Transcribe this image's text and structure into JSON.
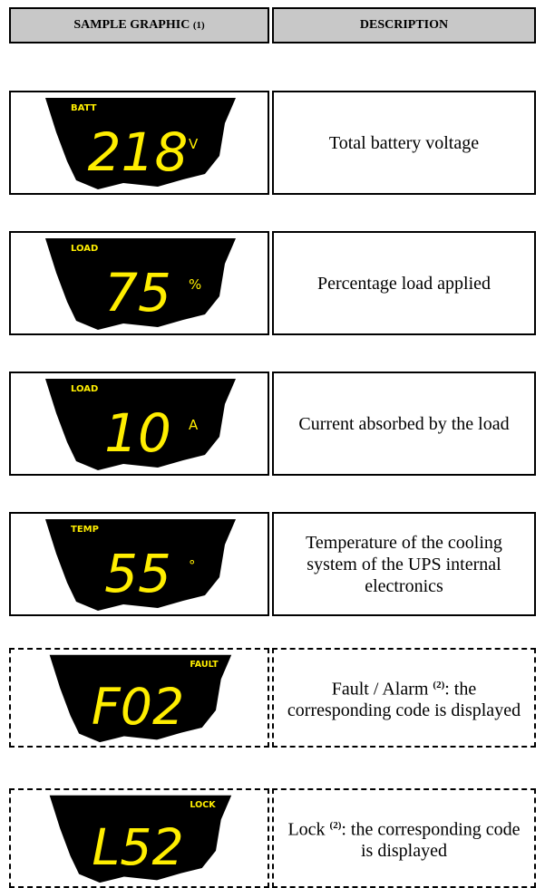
{
  "header": {
    "graphic": "SAMPLE GRAPHIC",
    "graphic_note": "(1)",
    "description": "DESCRIPTION"
  },
  "rows": [
    {
      "label": "BATT",
      "reading": "218",
      "unit": "V",
      "description": "Total battery voltage",
      "border": "solid"
    },
    {
      "label": "LOAD",
      "reading": "75",
      "unit": "%",
      "description": "Percentage load applied",
      "border": "solid"
    },
    {
      "label": "LOAD",
      "reading": "10",
      "unit": "A",
      "description": "Current absorbed by the load",
      "border": "solid"
    },
    {
      "label": "TEMP",
      "reading": "55",
      "unit": "°",
      "description": "Temperature of the cooling system of the UPS internal electronics",
      "border": "solid"
    },
    {
      "label": "FAULT",
      "reading": "F02",
      "description": "Fault / Alarm",
      "note": "(2)",
      "description_after": ": the corresponding code is displayed",
      "border": "dashed"
    },
    {
      "label": "LOCK",
      "reading": "L52",
      "description": "Lock",
      "note": "(2)",
      "description_after": ": the corresponding code is displayed",
      "border": "dashed"
    }
  ]
}
